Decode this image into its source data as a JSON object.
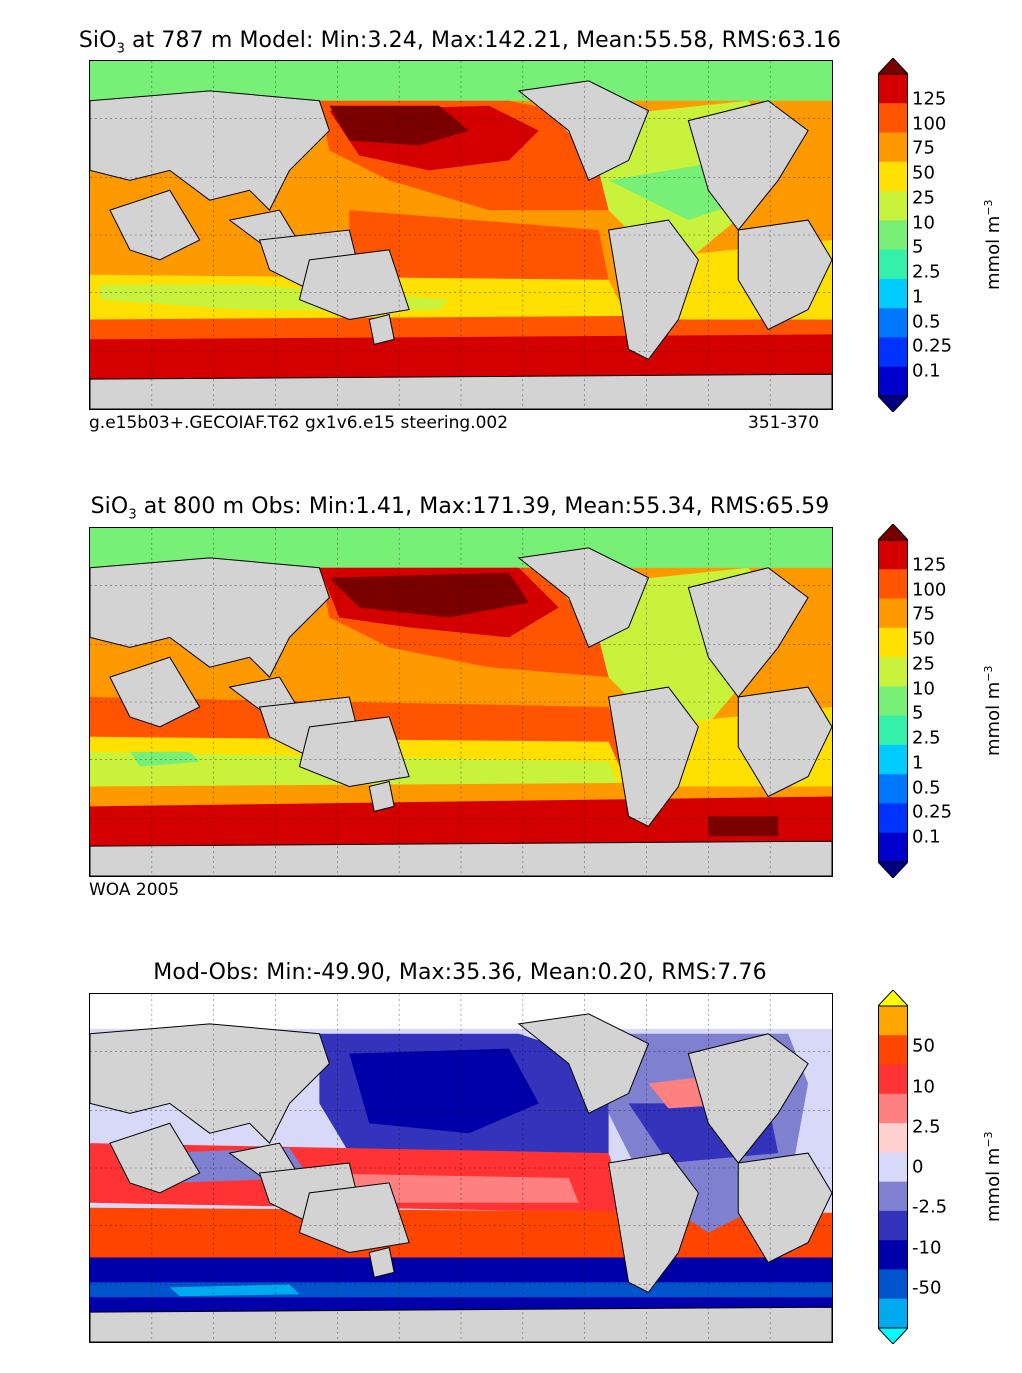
{
  "panels": [
    {
      "title_prefix": "SiO",
      "title_sub": "3",
      "title_rest": " at 787 m Model: Min:3.24, Max:142.21, Mean:55.58, RMS:63.16",
      "caption_left": "g.e15b03+.GECOIAF.T62 gx1v6.e15 steering.002",
      "caption_right": "351-370",
      "colorbar": {
        "labels": [
          "125",
          "100",
          "75",
          "50",
          "25",
          "10",
          "5",
          "2.5",
          "1",
          "0.5",
          "0.25",
          "0.1"
        ],
        "colors": [
          "#7a0000",
          "#d40000",
          "#ff5500",
          "#ff9900",
          "#ffe000",
          "#c8f23c",
          "#78f078",
          "#33f0aa",
          "#00ccff",
          "#0077ff",
          "#0033ff",
          "#0000cc",
          "#000080"
        ],
        "unit_base": "mmol m",
        "unit_exp": "−3"
      }
    },
    {
      "title_prefix": "SiO",
      "title_sub": "3",
      "title_rest": " at 800 m Obs: Min:1.41, Max:171.39, Mean:55.34, RMS:65.59",
      "caption_left": "WOA 2005",
      "caption_right": "",
      "colorbar": {
        "labels": [
          "125",
          "100",
          "75",
          "50",
          "25",
          "10",
          "5",
          "2.5",
          "1",
          "0.5",
          "0.25",
          "0.1"
        ],
        "colors": [
          "#7a0000",
          "#d40000",
          "#ff5500",
          "#ff9900",
          "#ffe000",
          "#c8f23c",
          "#78f078",
          "#33f0aa",
          "#00ccff",
          "#0077ff",
          "#0033ff",
          "#0000cc",
          "#000080"
        ],
        "unit_base": "mmol m",
        "unit_exp": "−3"
      }
    },
    {
      "title_prefix": "",
      "title_sub": "",
      "title_rest": "Mod-Obs: Min:-49.90, Max:35.36, Mean:0.20, RMS:7.76",
      "caption_left": "",
      "caption_right": "",
      "colorbar": {
        "labels": [
          "50",
          "10",
          "2.5",
          "0",
          "-2.5",
          "-10",
          "-50"
        ],
        "colors": [
          "#ffff00",
          "#ffa500",
          "#ff4500",
          "#ff3333",
          "#ff8080",
          "#ffd0d0",
          "#d8d8f8",
          "#8080d0",
          "#3333bb",
          "#0000aa",
          "#0055cc",
          "#00aaee",
          "#00ffff"
        ],
        "unit_base": "mmol m",
        "unit_exp": "−3"
      }
    }
  ]
}
